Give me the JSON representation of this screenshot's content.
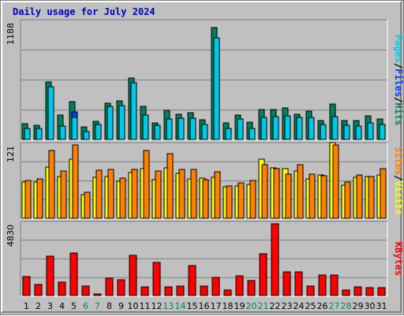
{
  "title": "Daily usage for July 2024",
  "colors": {
    "hits": "#00805c",
    "files": "#0040ff",
    "pages": "#00c8e8",
    "visits": "#ffff00",
    "sites": "#ff8000",
    "kbytes": "#ff0000",
    "weekend_label": "#00805c",
    "weekday_label": "#000000",
    "separator": "#000000"
  },
  "chart_data": [
    {
      "type": "bar",
      "panel": "top",
      "ylabel_max": "1188",
      "ymax": 1188,
      "right_label": {
        "parts": [
          "Pages",
          "/",
          "Files",
          "/",
          "Hits"
        ]
      },
      "categories": [
        "1",
        "2",
        "3",
        "4",
        "5",
        "6",
        "7",
        "8",
        "9",
        "10",
        "11",
        "12",
        "13",
        "14",
        "15",
        "16",
        "17",
        "18",
        "19",
        "20",
        "21",
        "22",
        "23",
        "24",
        "25",
        "26",
        "27",
        "28",
        "29",
        "30",
        "31"
      ],
      "weekend": [
        6,
        7,
        13,
        14,
        20,
        21,
        27,
        28
      ],
      "series": [
        {
          "name": "Hits",
          "values": [
            158,
            143,
            576,
            244,
            374,
            128,
            183,
            362,
            383,
            612,
            330,
            169,
            293,
            252,
            270,
            194,
            1120,
            162,
            245,
            170,
            300,
            299,
            314,
            254,
            287,
            192,
            357,
            192,
            186,
            239,
            206
          ]
        },
        {
          "name": "Files",
          "values": [
            114,
            111,
            526,
            136,
            276,
            76,
            150,
            333,
            339,
            566,
            245,
            141,
            207,
            210,
            212,
            146,
            1017,
            110,
            206,
            111,
            217,
            226,
            238,
            218,
            222,
            149,
            232,
            142,
            134,
            168,
            153
          ]
        },
        {
          "name": "Pages",
          "values": [
            114,
            111,
            526,
            136,
            219,
            76,
            150,
            333,
            339,
            566,
            245,
            141,
            207,
            210,
            212,
            146,
            1017,
            110,
            206,
            111,
            217,
            226,
            238,
            218,
            222,
            149,
            232,
            142,
            134,
            168,
            153
          ]
        }
      ]
    },
    {
      "type": "bar",
      "panel": "middle",
      "ylabel_max": "121",
      "ymax": 121,
      "right_label": {
        "parts": [
          "Sites",
          "/",
          "Visits"
        ]
      },
      "categories": [
        "1",
        "2",
        "3",
        "4",
        "5",
        "6",
        "7",
        "8",
        "9",
        "10",
        "11",
        "12",
        "13",
        "14",
        "15",
        "16",
        "17",
        "18",
        "19",
        "20",
        "21",
        "22",
        "23",
        "24",
        "25",
        "26",
        "27",
        "28",
        "29",
        "30",
        "31"
      ],
      "series": [
        {
          "name": "Visits",
          "values": [
            58,
            59,
            83,
            68,
            95,
            38,
            66,
            68,
            60,
            74,
            80,
            63,
            81,
            73,
            64,
            65,
            66,
            51,
            52,
            55,
            95,
            82,
            80,
            77,
            64,
            70,
            122,
            54,
            66,
            67,
            70
          ]
        },
        {
          "name": "Sites",
          "values": [
            61,
            64,
            109,
            76,
            118,
            42,
            78,
            79,
            65,
            79,
            110,
            77,
            104,
            79,
            79,
            63,
            75,
            52,
            57,
            61,
            87,
            80,
            71,
            86,
            71,
            69,
            119,
            59,
            70,
            68,
            80
          ]
        }
      ]
    },
    {
      "type": "bar",
      "panel": "bottom",
      "ylabel_max": "4830",
      "ymax": 4830,
      "right_label": {
        "parts": [
          "KBytes"
        ]
      },
      "categories": [
        "1",
        "2",
        "3",
        "4",
        "5",
        "6",
        "7",
        "8",
        "9",
        "10",
        "11",
        "12",
        "13",
        "14",
        "15",
        "16",
        "17",
        "18",
        "19",
        "20",
        "21",
        "22",
        "23",
        "24",
        "25",
        "26",
        "27",
        "28",
        "29",
        "30",
        "31"
      ],
      "series": [
        {
          "name": "KBytes",
          "values": [
            1244,
            723,
            2622,
            902,
            2805,
            607,
            113,
            1133,
            1037,
            2636,
            596,
            2175,
            596,
            620,
            1985,
            642,
            1199,
            367,
            1314,
            978,
            2776,
            4730,
            1538,
            1572,
            606,
            1330,
            1325,
            356,
            547,
            514,
            518
          ]
        }
      ]
    }
  ]
}
